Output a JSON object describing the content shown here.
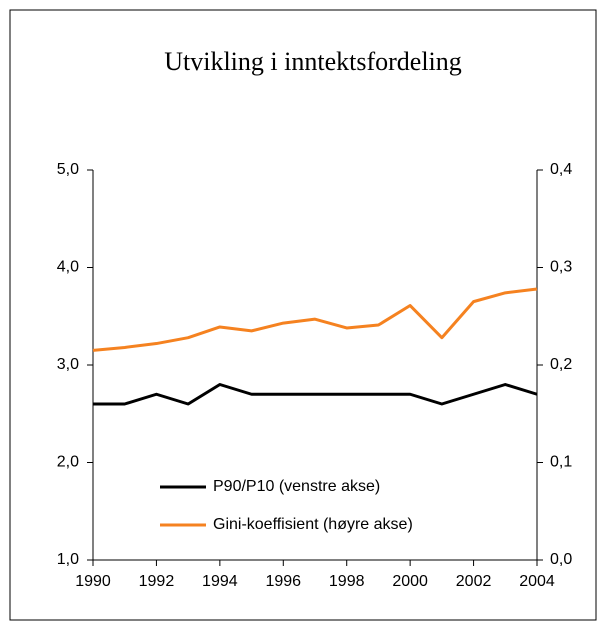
{
  "chart_data": {
    "type": "line",
    "title": "Utvikling i inntektsfordeling",
    "x": [
      1990,
      1991,
      1992,
      1993,
      1994,
      1995,
      1996,
      1997,
      1998,
      1999,
      2000,
      2001,
      2002,
      2003,
      2004
    ],
    "series": [
      {
        "name": "P90/P10 (venstre akse)",
        "color": "#000000",
        "axis": "y",
        "values": [
          2.6,
          2.6,
          2.7,
          2.6,
          2.8,
          2.7,
          2.7,
          2.7,
          2.7,
          2.7,
          2.7,
          2.6,
          2.7,
          2.8,
          2.7
        ]
      },
      {
        "name": "Gini-koeffisient (høyre akse)",
        "color": "#f58220",
        "axis": "y2",
        "values": [
          0.215,
          0.218,
          0.222,
          0.228,
          0.239,
          0.235,
          0.243,
          0.247,
          0.238,
          0.241,
          0.261,
          0.228,
          0.265,
          0.274,
          0.278
        ]
      }
    ],
    "xlim": [
      1990,
      2004
    ],
    "xticks": [
      1990,
      1992,
      1994,
      1996,
      1998,
      2000,
      2002,
      2004
    ],
    "ylim": [
      1,
      5
    ],
    "yticks": [
      {
        "value": 1,
        "label": "1,0"
      },
      {
        "value": 2,
        "label": "2,0"
      },
      {
        "value": 3,
        "label": "3,0"
      },
      {
        "value": 4,
        "label": "4,0"
      },
      {
        "value": 5,
        "label": "5,0"
      }
    ],
    "y2lim": [
      0,
      0.4
    ],
    "y2ticks": [
      {
        "value": 0,
        "label": "0,0"
      },
      {
        "value": 0.1,
        "label": "0,1"
      },
      {
        "value": 0.2,
        "label": "0,2"
      },
      {
        "value": 0.3,
        "label": "0,3"
      },
      {
        "value": 0.4,
        "label": "0,4"
      }
    ],
    "grid": false,
    "legend": "lower center"
  }
}
